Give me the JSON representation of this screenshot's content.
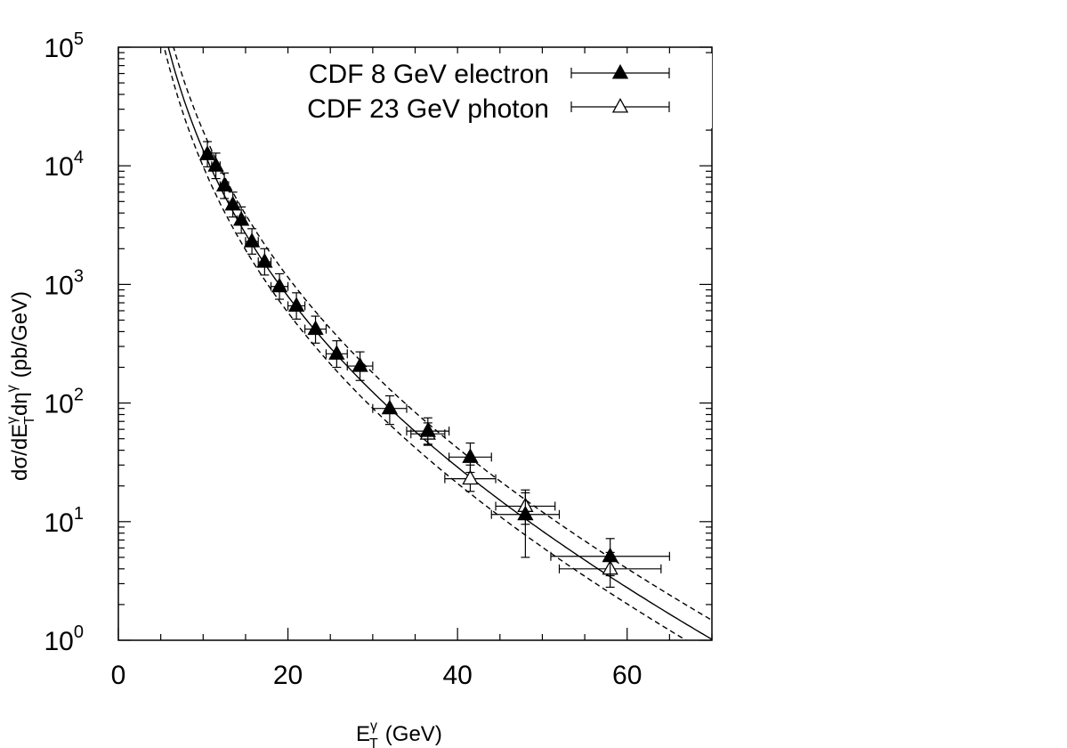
{
  "chart_data": {
    "type": "scatter",
    "title": "",
    "xlabel": "E",
    "xlabel_sup": "γ",
    "xlabel_sub": "T",
    "xlabel_unit": "(GeV)",
    "ylabel_parts": {
      "a": "dσ/dE",
      "a_sup": "γ",
      "a_sub": "T",
      "b": "dη",
      "b_sup": "γ",
      "unit": "(pb/GeV)"
    },
    "xlim": [
      0,
      70
    ],
    "ylim": [
      1,
      100000
    ],
    "yscale": "log",
    "x_ticks": [
      "0",
      "20",
      "40",
      "60"
    ],
    "x_tick_values": [
      0,
      20,
      40,
      60
    ],
    "y_ticks": [
      {
        "base": "10",
        "exp": "0",
        "value": 1
      },
      {
        "base": "10",
        "exp": "1",
        "value": 10
      },
      {
        "base": "10",
        "exp": "2",
        "value": 100
      },
      {
        "base": "10",
        "exp": "3",
        "value": 1000
      },
      {
        "base": "10",
        "exp": "4",
        "value": 10000
      },
      {
        "base": "10",
        "exp": "5",
        "value": 100000
      }
    ],
    "legend_position": "top-right",
    "series": [
      {
        "name": "CDF 8 GeV electron",
        "marker": "filled-triangle",
        "points": [
          {
            "x": 10.5,
            "y": 12500,
            "xerr": 0.5,
            "ylo": 9800,
            "yhi": 16000
          },
          {
            "x": 11.5,
            "y": 10000,
            "xerr": 0.5,
            "ylo": 7800,
            "yhi": 12800
          },
          {
            "x": 12.5,
            "y": 6800,
            "xerr": 0.5,
            "ylo": 5300,
            "yhi": 8700
          },
          {
            "x": 13.5,
            "y": 4700,
            "xerr": 0.5,
            "ylo": 3700,
            "yhi": 6000
          },
          {
            "x": 14.5,
            "y": 3500,
            "xerr": 0.5,
            "ylo": 2700,
            "yhi": 4500
          },
          {
            "x": 15.75,
            "y": 2300,
            "xerr": 0.75,
            "ylo": 1800,
            "yhi": 2950
          },
          {
            "x": 17.25,
            "y": 1550,
            "xerr": 0.75,
            "ylo": 1200,
            "yhi": 2000
          },
          {
            "x": 19.0,
            "y": 960,
            "xerr": 1.0,
            "ylo": 750,
            "yhi": 1230
          },
          {
            "x": 21.0,
            "y": 660,
            "xerr": 1.0,
            "ylo": 510,
            "yhi": 850
          },
          {
            "x": 23.25,
            "y": 420,
            "xerr": 1.25,
            "ylo": 320,
            "yhi": 540
          },
          {
            "x": 25.75,
            "y": 260,
            "xerr": 1.25,
            "ylo": 200,
            "yhi": 335
          },
          {
            "x": 28.5,
            "y": 205,
            "xerr": 1.5,
            "ylo": 155,
            "yhi": 270
          },
          {
            "x": 32.0,
            "y": 90,
            "xerr": 2.0,
            "ylo": 66,
            "yhi": 115
          },
          {
            "x": 36.5,
            "y": 58,
            "xerr": 2.5,
            "ylo": 44,
            "yhi": 75
          },
          {
            "x": 41.5,
            "y": 35,
            "xerr": 2.5,
            "ylo": 26,
            "yhi": 46
          },
          {
            "x": 48.0,
            "y": 11.5,
            "xerr": 4.0,
            "ylo": 5.0,
            "yhi": 17.5
          },
          {
            "x": 58.0,
            "y": 5.1,
            "xerr": 7.0,
            "ylo": 3.5,
            "yhi": 7.2
          }
        ]
      },
      {
        "name": "CDF 23 GeV photon",
        "marker": "open-triangle",
        "points": [
          {
            "x": 36.5,
            "y": 55,
            "xerr": 2.0,
            "ylo": 45,
            "yhi": 68
          },
          {
            "x": 41.5,
            "y": 23,
            "xerr": 3.0,
            "ylo": 18,
            "yhi": 30
          },
          {
            "x": 48.0,
            "y": 13.5,
            "xerr": 3.5,
            "ylo": 9.5,
            "yhi": 18.5
          },
          {
            "x": 58.0,
            "y": 4.0,
            "xerr": 6.0,
            "ylo": 2.8,
            "yhi": 5.5
          }
        ]
      }
    ],
    "theory_curves": [
      {
        "name": "central",
        "style": "solid",
        "norm": 1.0
      },
      {
        "name": "upper",
        "style": "dashed",
        "norm": 1.45
      },
      {
        "name": "lower",
        "style": "dashed",
        "norm": 0.73
      }
    ],
    "theory_shape": {
      "A": 34000000,
      "n": 3.4,
      "b": 0.048,
      "x0": 10
    }
  }
}
